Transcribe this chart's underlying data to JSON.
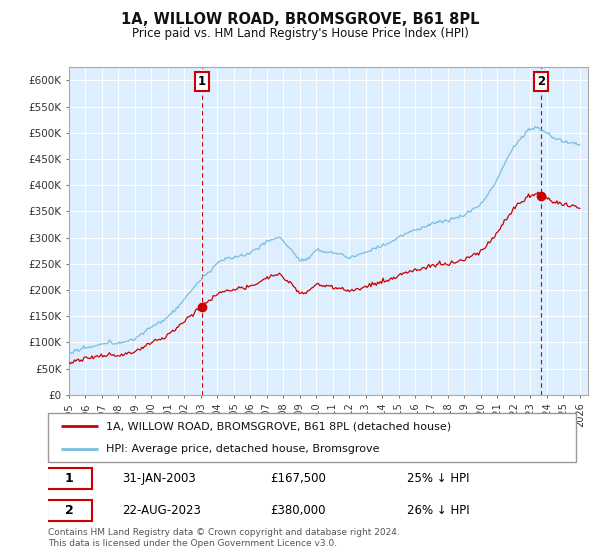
{
  "title": "1A, WILLOW ROAD, BROMSGROVE, B61 8PL",
  "subtitle": "Price paid vs. HM Land Registry's House Price Index (HPI)",
  "ylim": [
    0,
    625000
  ],
  "ytick_vals": [
    0,
    50000,
    100000,
    150000,
    200000,
    250000,
    300000,
    350000,
    400000,
    450000,
    500000,
    550000,
    600000
  ],
  "ytick_labels": [
    "£0",
    "£50K",
    "£100K",
    "£150K",
    "£200K",
    "£250K",
    "£300K",
    "£350K",
    "£400K",
    "£450K",
    "£500K",
    "£550K",
    "£600K"
  ],
  "hpi_color": "#7bbde0",
  "price_color": "#cc0000",
  "sale1_year": 2003.08,
  "sale2_year": 2023.65,
  "sale1_price": 167500,
  "sale2_price": 380000,
  "sale1_label": "31-JAN-2003",
  "sale1_pct": "25% ↓ HPI",
  "sale2_label": "22-AUG-2023",
  "sale2_pct": "26% ↓ HPI",
  "legend_label1": "1A, WILLOW ROAD, BROMSGROVE, B61 8PL (detached house)",
  "legend_label2": "HPI: Average price, detached house, Bromsgrove",
  "footnote": "Contains HM Land Registry data © Crown copyright and database right 2024.\nThis data is licensed under the Open Government Licence v3.0.",
  "chart_bg_color": "#ddeeff",
  "fig_bg_color": "#ffffff",
  "grid_color": "#ffffff"
}
